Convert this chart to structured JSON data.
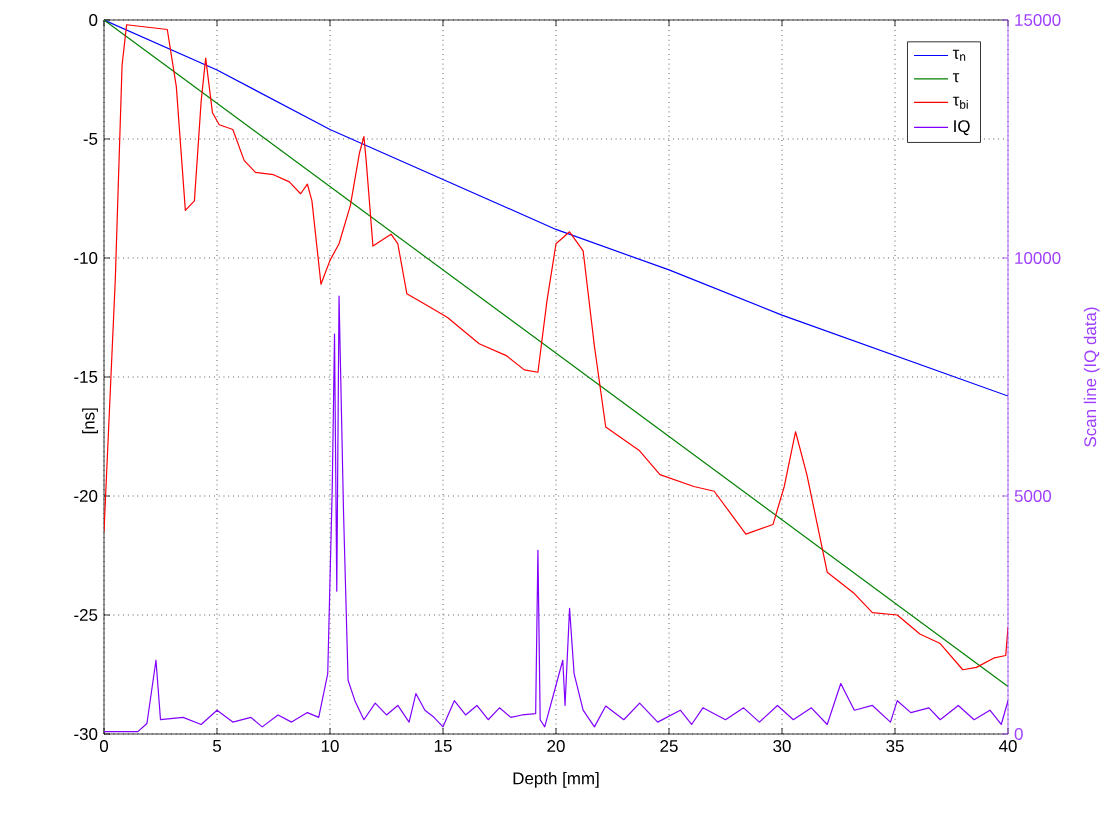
{
  "chart_data": {
    "type": "line",
    "xlabel": "Depth [mm]",
    "ylabel": "[ns]",
    "y2label": "Scan line (IQ data)",
    "xlim": [
      0,
      40
    ],
    "ylim": [
      -30,
      0
    ],
    "y2lim": [
      0,
      15000
    ],
    "xticks": [
      0,
      5,
      10,
      15,
      20,
      25,
      30,
      35,
      40
    ],
    "yticks": [
      -30,
      -25,
      -20,
      -15,
      -10,
      -5,
      0
    ],
    "y2ticks": [
      0,
      5000,
      10000,
      15000
    ],
    "grid": true,
    "legend": "top right",
    "marker": "none",
    "line_style": "solid",
    "series": [
      {
        "name": "τ$_{n}$",
        "color": "#0000ff",
        "x": [
          0,
          5,
          10,
          20,
          25,
          30,
          40
        ],
        "values": [
          0,
          -2.1,
          -4.6,
          -8.8,
          -10.5,
          -12.4,
          -15.8
        ]
      },
      {
        "name": "τ",
        "color": "#008000",
        "x": [
          0,
          40
        ],
        "values": [
          0,
          -28
        ]
      },
      {
        "name": "τ$_{bi}$",
        "color": "#ff0000",
        "x": [
          0,
          0.5,
          0.8,
          1,
          2.8,
          3.2,
          3.6,
          4,
          4.3,
          4.5,
          4.8,
          5.1,
          5.7,
          6.2,
          6.7,
          7.5,
          8.2,
          8.7,
          9,
          9.2,
          9.6,
          10,
          10.4,
          10.9,
          11.3,
          11.5,
          11.6,
          11.9,
          12.7,
          13,
          13.4,
          14.3,
          15.2,
          16.6,
          17.8,
          18.6,
          19.2,
          19.6,
          20,
          20.6,
          21.2,
          21.7,
          22.2,
          23.7,
          24.6,
          26.1,
          27,
          27.7,
          28.4,
          29.6,
          30.1,
          30.6,
          31.1,
          32,
          33.2,
          34,
          35.1,
          36.1,
          37,
          38,
          38.6,
          39.4,
          39.9,
          40
        ],
        "values": [
          -21.5,
          -10.9,
          -1.9,
          -0.2,
          -0.4,
          -2.8,
          -8.0,
          -7.6,
          -3.4,
          -1.6,
          -3.9,
          -4.4,
          -4.6,
          -5.9,
          -6.4,
          -6.5,
          -6.8,
          -7.3,
          -6.9,
          -7.6,
          -11.1,
          -10.1,
          -9.4,
          -7.8,
          -5.6,
          -4.9,
          -5.9,
          -9.5,
          -9.0,
          -9.4,
          -11.5,
          -12.0,
          -12.5,
          -13.6,
          -14.1,
          -14.7,
          -14.8,
          -11.8,
          -9.4,
          -8.9,
          -9.7,
          -13.7,
          -17.1,
          -18.1,
          -19.1,
          -19.6,
          -19.8,
          -20.7,
          -21.6,
          -21.2,
          -19.6,
          -17.3,
          -19.1,
          -23.2,
          -24.1,
          -24.9,
          -25.0,
          -25.8,
          -26.2,
          -27.3,
          -27.2,
          -26.8,
          -26.7,
          -25.5
        ]
      },
      {
        "name": "IQ",
        "color": "#8000ff",
        "axis": "y2",
        "x": [
          0,
          1.5,
          1.9,
          2.3,
          2.5,
          3.5,
          4.3,
          5,
          5.7,
          6.5,
          7,
          7.7,
          8.3,
          9,
          9.5,
          9.9,
          10.1,
          10.2,
          10.3,
          10.4,
          10.6,
          10.8,
          11.1,
          11.5,
          12,
          12.5,
          13,
          13.5,
          13.8,
          14.2,
          14.6,
          15,
          15.5,
          16,
          16.5,
          17,
          17.5,
          18,
          18.5,
          19.1,
          19.2,
          19.3,
          19.5,
          20.3,
          20.4,
          20.6,
          20.8,
          21.2,
          21.7,
          22.2,
          23,
          23.7,
          24.5,
          25.5,
          26,
          26.5,
          27.5,
          28.3,
          29,
          29.8,
          30.5,
          31.3,
          32,
          32.6,
          33.2,
          34,
          34.8,
          35.1,
          35.7,
          36.5,
          37,
          37.8,
          38.5,
          39.2,
          39.7,
          40
        ],
        "values": [
          50,
          50,
          220,
          1550,
          300,
          350,
          200,
          500,
          250,
          350,
          150,
          400,
          250,
          450,
          350,
          1270,
          5200,
          8400,
          3000,
          9200,
          4630,
          1130,
          700,
          300,
          650,
          400,
          600,
          250,
          850,
          500,
          350,
          150,
          700,
          400,
          600,
          300,
          550,
          350,
          400,
          430,
          3860,
          300,
          150,
          1550,
          600,
          2640,
          1270,
          500,
          150,
          590,
          300,
          650,
          250,
          500,
          200,
          550,
          300,
          550,
          250,
          600,
          300,
          550,
          200,
          1060,
          500,
          600,
          250,
          700,
          450,
          550,
          300,
          600,
          300,
          500,
          200,
          700
        ]
      }
    ]
  }
}
